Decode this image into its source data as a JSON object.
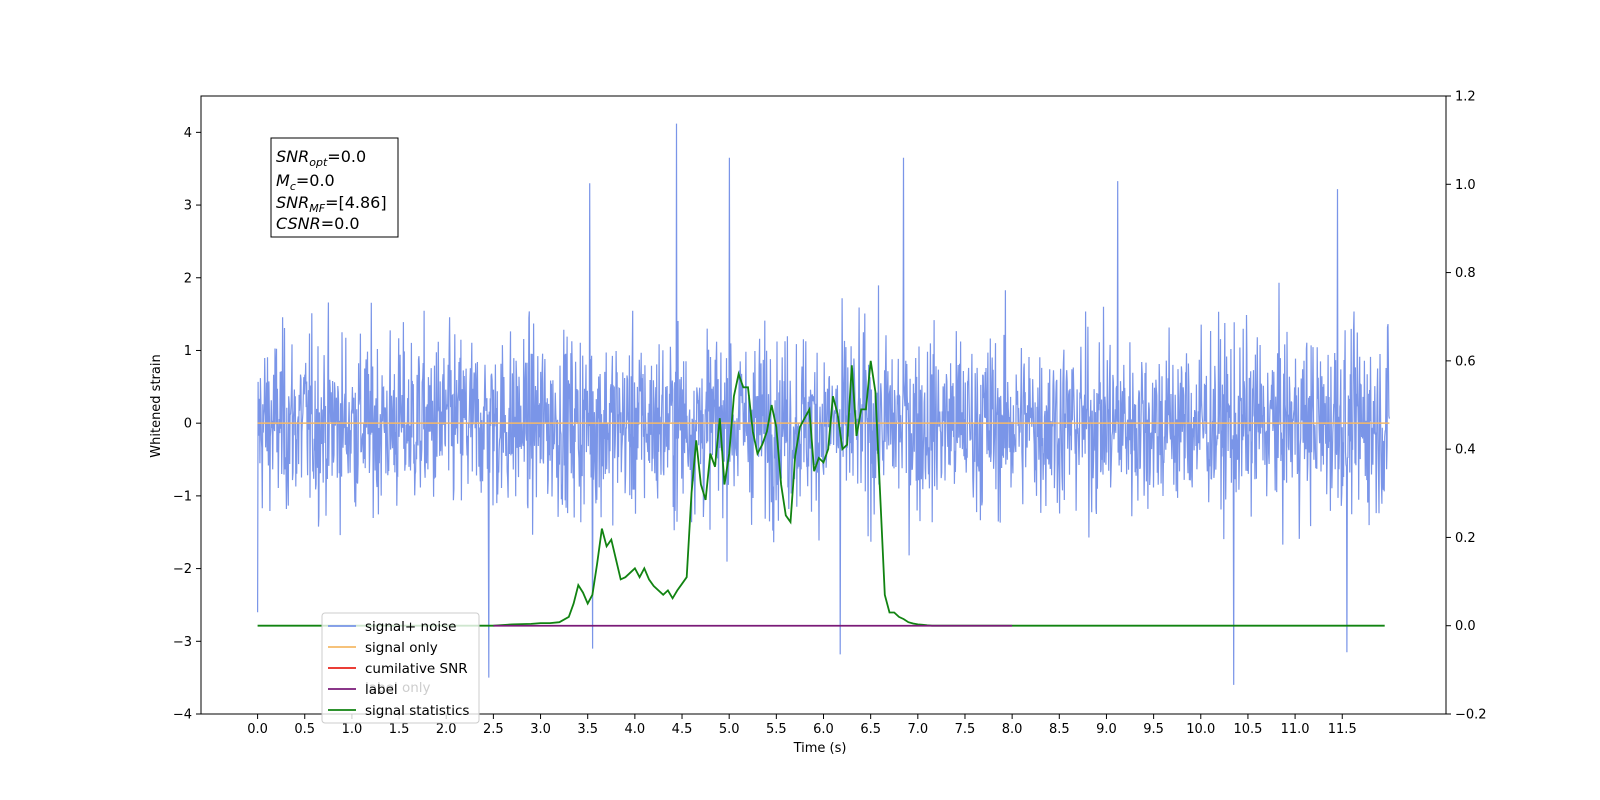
{
  "chart_data": {
    "type": "line",
    "xlabel": "Time (s)",
    "ylabel": "Whitened strain",
    "xlim": [
      -0.6,
      12.6
    ],
    "ylim": [
      -4,
      4.5
    ],
    "y2lim": [
      -0.2,
      1.2
    ],
    "x_ticks": [
      "0.0",
      "0.5",
      "1.0",
      "1.5",
      "2.0",
      "2.5",
      "3.0",
      "3.5",
      "4.0",
      "4.5",
      "5.0",
      "5.5",
      "6.0",
      "6.5",
      "7.0",
      "7.5",
      "8.0",
      "8.5",
      "9.0",
      "9.5",
      "10.0",
      "10.5",
      "11.0",
      "11.5"
    ],
    "y_ticks": [
      "4",
      "3",
      "2",
      "1",
      "0",
      "−1",
      "−2",
      "−3",
      "−4"
    ],
    "y2_ticks": [
      "1.2",
      "1.0",
      "0.8",
      "0.6",
      "0.4",
      "0.2",
      "0.0",
      "−0.2"
    ],
    "colors": {
      "noise": "#7a95e8",
      "signal_only": "#f5b967",
      "cumulative_snr": "#e8231a",
      "label": "#7a1a78",
      "signal_statistics": "#118311"
    },
    "noise_series": {
      "name": "signal+ noise",
      "x_range": [
        0.0,
        12.0
      ],
      "typical_envelope": [
        -1.6,
        1.6
      ],
      "peaks": [
        {
          "x": 4.44,
          "y": 4.12
        },
        {
          "x": 5.0,
          "y": 3.65
        },
        {
          "x": 6.85,
          "y": 3.65
        },
        {
          "x": 3.52,
          "y": 3.3
        },
        {
          "x": 9.12,
          "y": 3.33
        },
        {
          "x": 11.45,
          "y": 3.22
        },
        {
          "x": 2.45,
          "y": -3.5
        },
        {
          "x": 10.35,
          "y": -3.6
        },
        {
          "x": 6.18,
          "y": -3.18
        },
        {
          "x": 11.55,
          "y": -3.15
        },
        {
          "x": 3.55,
          "y": -3.1
        },
        {
          "x": 0.0,
          "y": -2.6
        }
      ]
    },
    "signal_only_series": {
      "name": "signal only",
      "y": 0.0
    },
    "label_series": {
      "name": "label",
      "x_range": [
        2.5,
        8.0
      ],
      "y2": 0.0
    },
    "signal_statistics": {
      "name": "signal statistics",
      "x": [
        0.0,
        1.0,
        2.0,
        2.5,
        2.7,
        2.9,
        3.0,
        3.1,
        3.2,
        3.3,
        3.35,
        3.4,
        3.45,
        3.5,
        3.55,
        3.6,
        3.65,
        3.7,
        3.75,
        3.8,
        3.85,
        3.9,
        4.0,
        4.05,
        4.1,
        4.15,
        4.2,
        4.3,
        4.35,
        4.4,
        4.45,
        4.5,
        4.55,
        4.6,
        4.65,
        4.7,
        4.75,
        4.8,
        4.85,
        4.9,
        4.95,
        5.0,
        5.05,
        5.1,
        5.15,
        5.2,
        5.25,
        5.3,
        5.35,
        5.4,
        5.45,
        5.5,
        5.55,
        5.6,
        5.65,
        5.7,
        5.75,
        5.8,
        5.85,
        5.9,
        5.95,
        6.0,
        6.05,
        6.1,
        6.15,
        6.2,
        6.25,
        6.3,
        6.35,
        6.4,
        6.45,
        6.5,
        6.55,
        6.6,
        6.65,
        6.7,
        6.75,
        6.8,
        6.85,
        6.9,
        6.95,
        7.0,
        7.05,
        7.1,
        7.15,
        7.2,
        7.3,
        7.5,
        7.6,
        7.7,
        8.0,
        9.0,
        11.0,
        11.95
      ],
      "y": [
        0.0,
        0.0,
        0.0,
        0.0,
        0.003,
        0.004,
        0.006,
        0.006,
        0.008,
        0.02,
        0.05,
        0.092,
        0.075,
        0.05,
        0.07,
        0.14,
        0.22,
        0.18,
        0.195,
        0.15,
        0.105,
        0.11,
        0.13,
        0.11,
        0.13,
        0.105,
        0.09,
        0.07,
        0.08,
        0.062,
        0.08,
        0.095,
        0.11,
        0.3,
        0.42,
        0.32,
        0.285,
        0.39,
        0.36,
        0.47,
        0.32,
        0.39,
        0.52,
        0.57,
        0.54,
        0.54,
        0.44,
        0.39,
        0.41,
        0.44,
        0.5,
        0.45,
        0.32,
        0.25,
        0.235,
        0.385,
        0.45,
        0.47,
        0.49,
        0.35,
        0.38,
        0.37,
        0.4,
        0.52,
        0.48,
        0.4,
        0.41,
        0.59,
        0.43,
        0.49,
        0.49,
        0.6,
        0.53,
        0.3,
        0.07,
        0.03,
        0.03,
        0.02,
        0.015,
        0.008,
        0.005,
        0.003,
        0.002,
        0.001,
        0.0,
        0.0,
        0.0,
        0.0,
        0.0,
        0.0,
        0.0,
        0.0,
        0.0,
        0.0
      ]
    },
    "legend": {
      "placement": "lower-left",
      "entries": [
        {
          "label": "signal+ noise",
          "color": "#7a95e8"
        },
        {
          "label": "signal only",
          "color": "#f5b967"
        },
        {
          "label": "cumilative SNR",
          "color": "#e8231a"
        },
        {
          "label": "label",
          "color": "#7a1a78"
        },
        {
          "label": "signal statistics",
          "color": "#118311"
        }
      ],
      "hidden_label": "label only"
    },
    "stats_box": {
      "placement": "upper-left",
      "lines": [
        {
          "base": "SNR",
          "sub": "opt",
          "value": "=0.0"
        },
        {
          "base": "M",
          "sub": "c",
          "value": "=0.0"
        },
        {
          "base": "SNR",
          "sub": "MF",
          "value": "=[4.86]"
        },
        {
          "base": "CSNR",
          "sub": "",
          "value": "=0.0"
        }
      ]
    }
  }
}
